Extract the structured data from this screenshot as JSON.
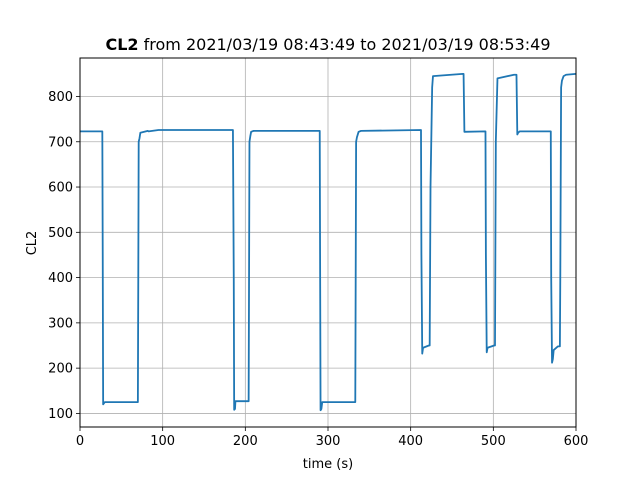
{
  "chart_data": {
    "type": "line",
    "title_bold": "CL2",
    "title_rest": " from 2021/03/19 08:43:49 to 2021/03/19 08:53:49",
    "xlabel": "time (s)",
    "ylabel": "CL2",
    "xlim": [
      0,
      600
    ],
    "ylim": [
      70,
      885
    ],
    "xticks": [
      0,
      100,
      200,
      300,
      400,
      500,
      600
    ],
    "yticks": [
      100,
      200,
      300,
      400,
      500,
      600,
      700,
      800
    ],
    "grid": true,
    "series": [
      {
        "color": "#1f77b4",
        "x": [
          0,
          27,
          27.5,
          28,
          30,
          70,
          70.5,
          71,
          72,
          73,
          82,
          83,
          95,
          185,
          186,
          186.5,
          187.5,
          188,
          204,
          204.5,
          205,
          206,
          207,
          210,
          212,
          290,
          290.5,
          291,
          292,
          293,
          333,
          333.5,
          334,
          335,
          337,
          340,
          412,
          412.5,
          413,
          414,
          415,
          422,
          423,
          424,
          426,
          427,
          463,
          464,
          465,
          490,
          490.5,
          491,
          492,
          493,
          501,
          502,
          503,
          505,
          525,
          527,
          528,
          529,
          530,
          532,
          569,
          569.5,
          570,
          571,
          572,
          573,
          578,
          580,
          580.5,
          581,
          582,
          583,
          585,
          588,
          600
        ],
        "y": [
          723,
          723,
          450,
          120,
          125,
          125,
          400,
          700,
          708,
          720,
          724,
          723,
          726,
          726,
          400,
          108,
          110,
          127,
          127,
          400,
          700,
          712,
          722,
          724,
          724,
          724,
          400,
          107,
          110,
          125,
          125,
          400,
          700,
          710,
          722,
          724,
          726,
          726,
          450,
          232,
          245,
          250,
          250,
          600,
          820,
          845,
          850,
          850,
          722,
          723,
          723,
          450,
          235,
          245,
          250,
          250,
          700,
          840,
          848,
          848,
          848,
          716,
          720,
          723,
          723,
          723,
          400,
          212,
          220,
          240,
          248,
          248,
          248,
          400,
          820,
          835,
          845,
          848,
          850
        ]
      }
    ]
  }
}
